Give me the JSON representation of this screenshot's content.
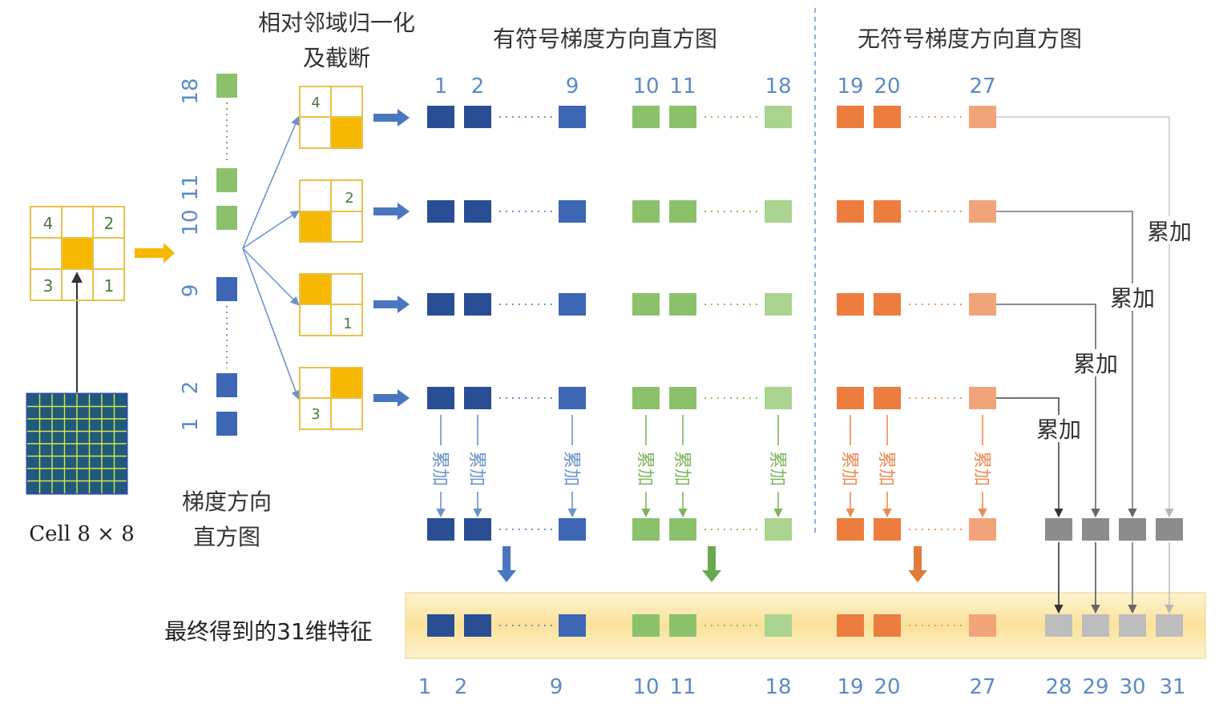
{
  "titles": {
    "normalize_line1": "相对邻域归一化",
    "normalize_line2": "及截断",
    "signed": "有符号梯度方向直方图",
    "unsigned": "无符号梯度方向直方图",
    "grad_hist_line1": "梯度方向",
    "grad_hist_line2": "直方图",
    "cell": "Cell 8 × 8",
    "final": "最终得到的31维特征"
  },
  "accumulate": "累加",
  "left_histogram_labels": [
    "1",
    "2",
    "9",
    "10",
    "11",
    "18"
  ],
  "cell_grid_numbers": {
    "top_left": "4",
    "top_right": "2",
    "bottom_left": "3",
    "bottom_right": "1"
  },
  "normalized_cell_numbers": [
    "4",
    "2",
    "1",
    "3"
  ],
  "top_bin_labels": {
    "blue": [
      "1",
      "2",
      "9"
    ],
    "green": [
      "10",
      "11",
      "18"
    ],
    "orange": [
      "19",
      "20",
      "27"
    ]
  },
  "bottom_bin_labels": [
    "1",
    "2",
    "9",
    "10",
    "11",
    "18",
    "19",
    "20",
    "27",
    "28",
    "29",
    "30",
    "31"
  ],
  "colors": {
    "blue": "#2a4e94",
    "blue_light": "#3d66b5",
    "green": "#8cc16c",
    "green_light": "#a9d38f",
    "orange": "#ec7d3f",
    "orange_light": "#f1a47a",
    "gray": "#8c8c8c",
    "gray_light": "#bdbdbd",
    "cell_yellow": "#f6b800",
    "band_yellow": "#fbe5a2",
    "label_blue": "#5d8ac4"
  }
}
